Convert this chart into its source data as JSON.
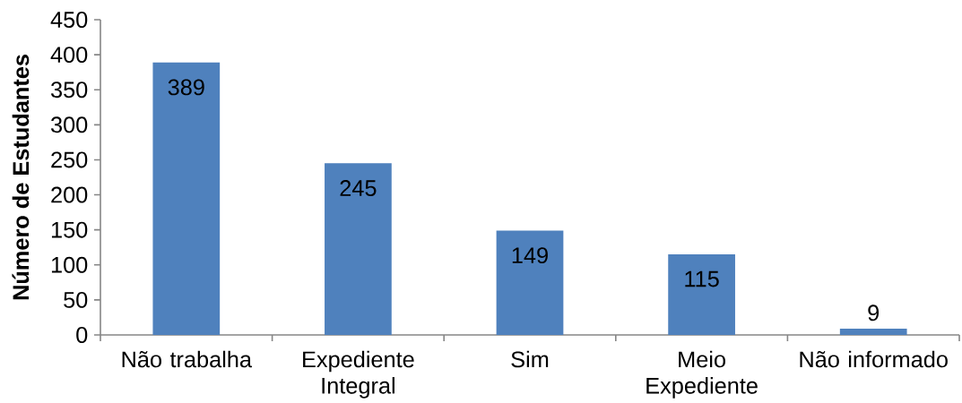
{
  "chart_data": {
    "type": "bar",
    "ylabel": "Número de Estudantes",
    "categories": [
      "Não trabalha",
      "Expediente Integral",
      "Sim",
      "Meio Expediente",
      "Não informado"
    ],
    "values": [
      389,
      245,
      149,
      115,
      9
    ],
    "color": "#4f81bd",
    "ylim": [
      0,
      450
    ],
    "yticks": [
      0,
      50,
      100,
      150,
      200,
      250,
      300,
      350,
      400,
      450
    ],
    "data_labels": true
  }
}
